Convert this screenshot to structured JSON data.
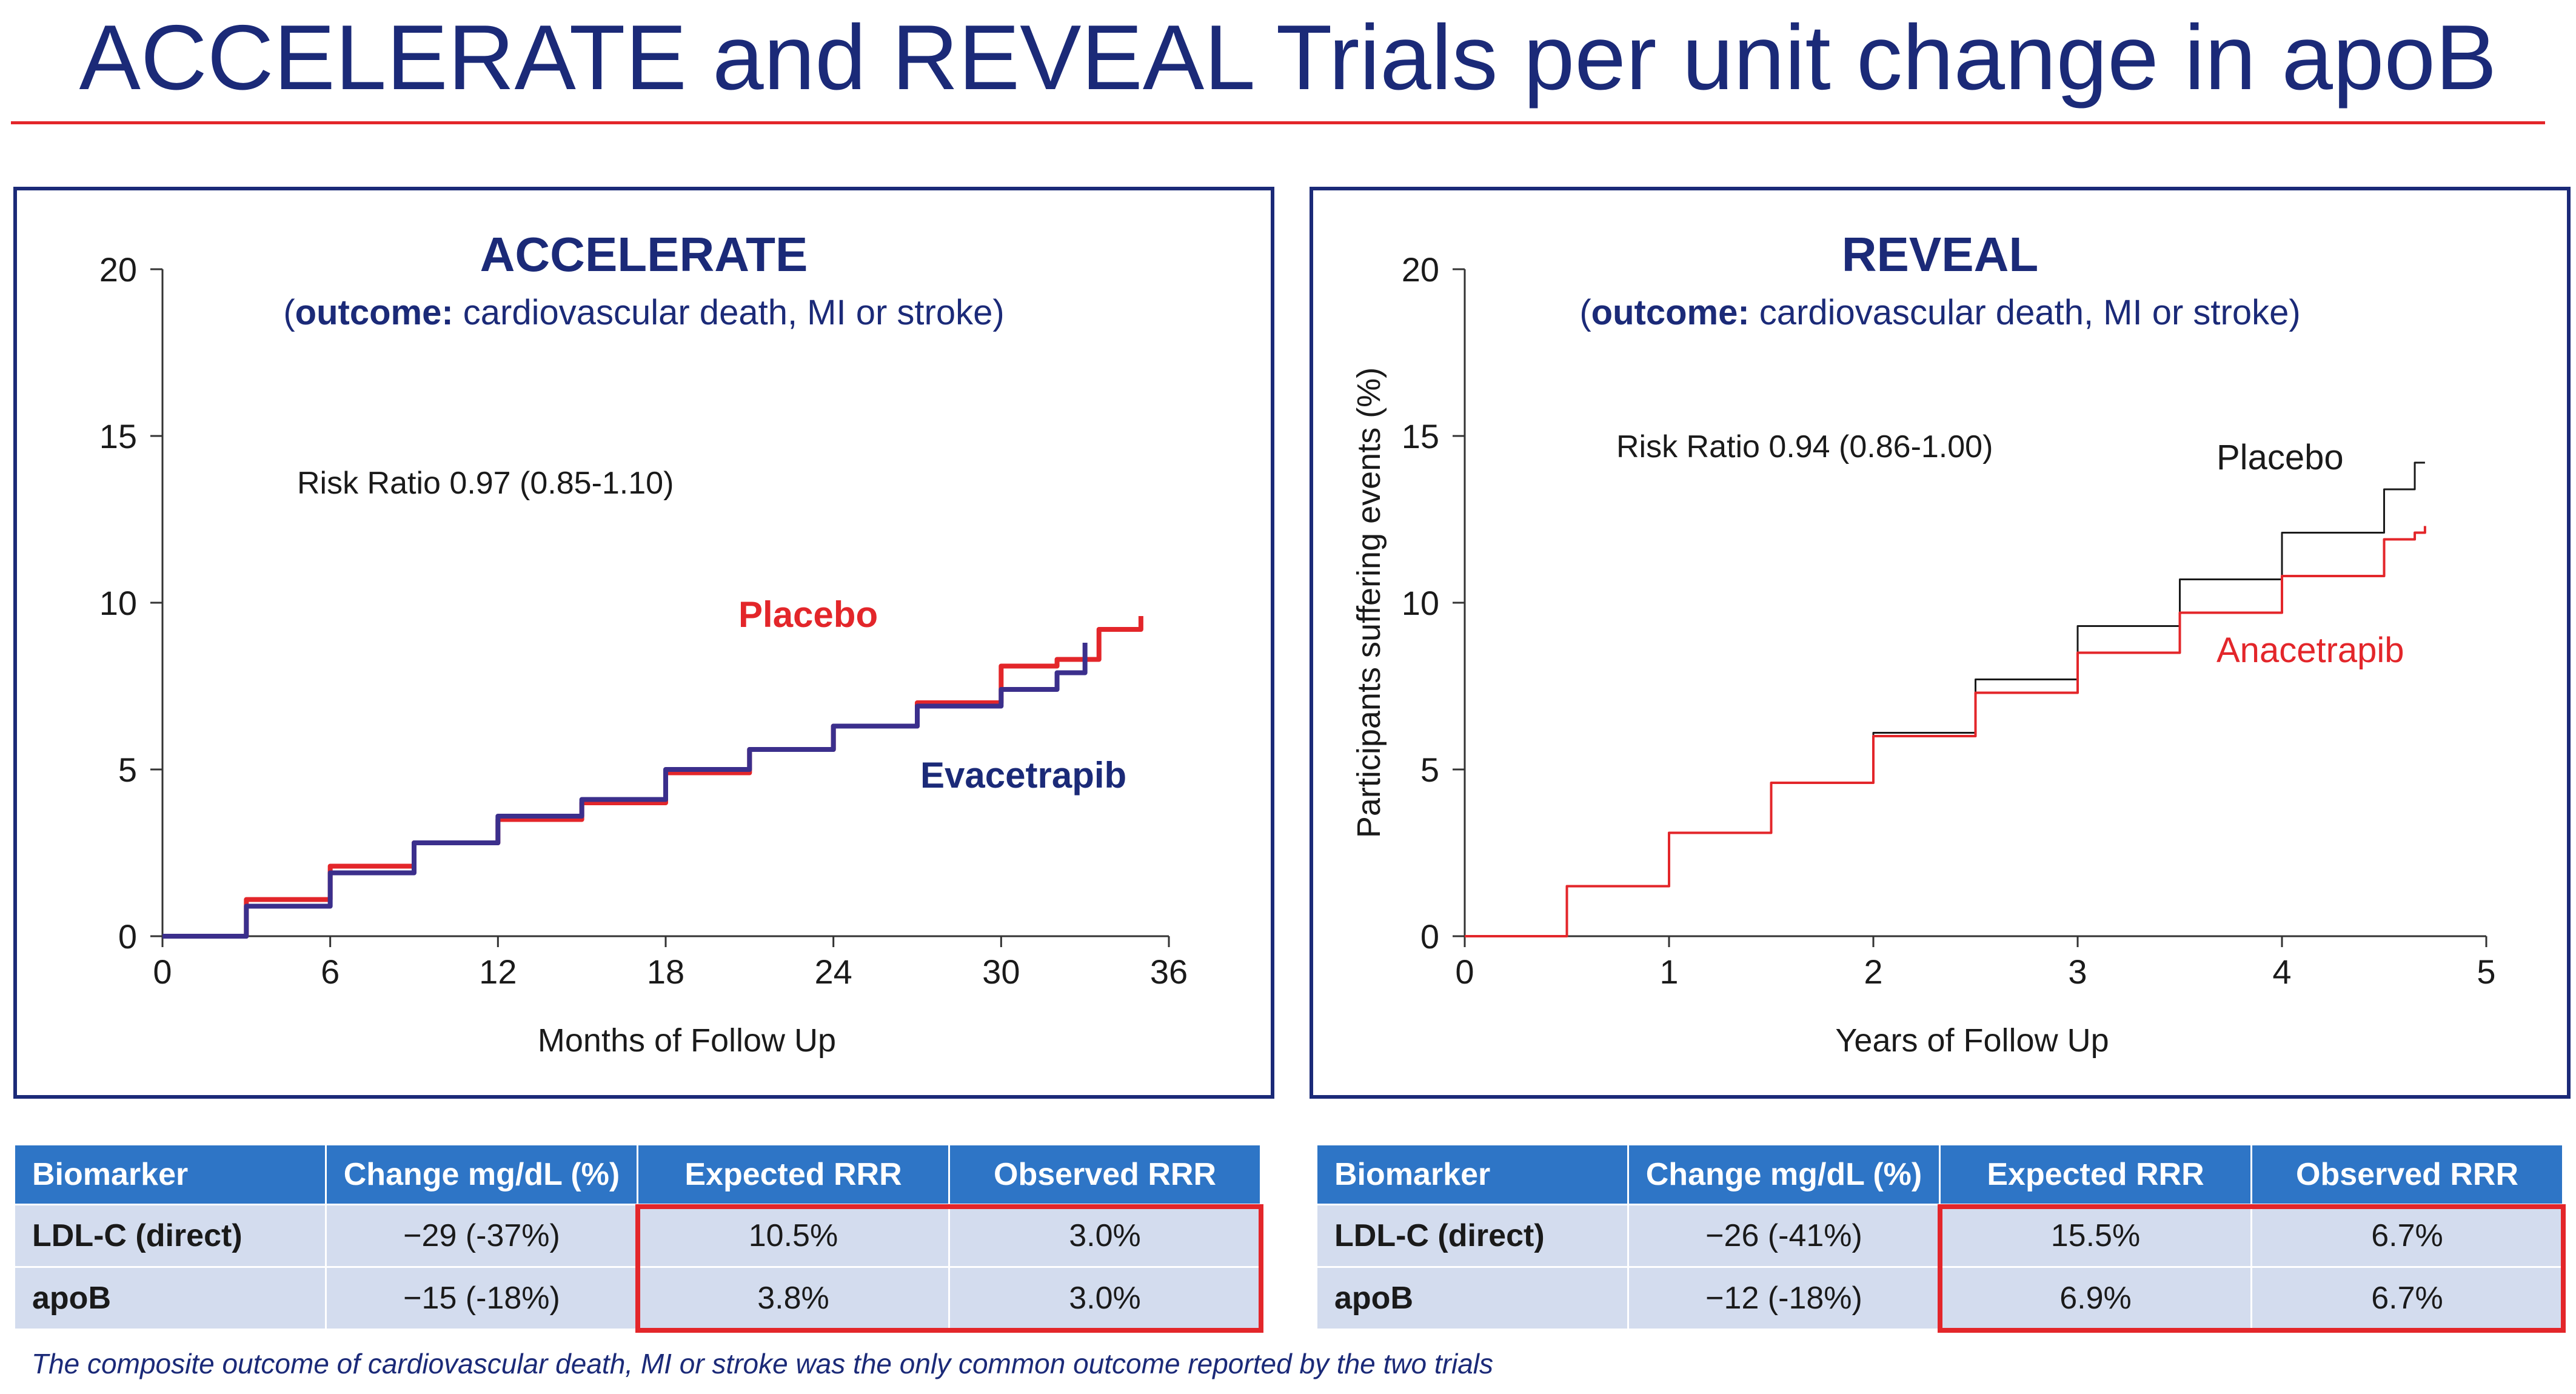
{
  "slide": {
    "title": "ACCELERATE and REVEAL Trials per unit change in apoB",
    "footnote": "The composite outcome of cardiovascular death, MI or stroke was the only common outcome reported by the two trials"
  },
  "colors": {
    "navy": "#1b2a78",
    "red": "#e3262a",
    "header_blue": "#2e75c6",
    "cell_blue": "#d3dcee",
    "evacetrapib": "#3b2f8c"
  },
  "chart_data": [
    {
      "type": "line",
      "title": "ACCELERATE",
      "subtitle_bold": "outcome:",
      "subtitle_rest": " cardiovascular death, MI or stroke",
      "xlabel": "Months of Follow Up",
      "ylabel": "",
      "xlim": [
        0,
        36
      ],
      "ylim": [
        0,
        20
      ],
      "xticks": [
        "0",
        "6",
        "12",
        "18",
        "24",
        "30",
        "36"
      ],
      "yticks": [
        "0",
        "5",
        "10",
        "15",
        "20"
      ],
      "annotation": "Risk Ratio 0.97 (0.85-1.10)",
      "series": [
        {
          "name": "Placebo",
          "color": "#e3262a",
          "x": [
            0,
            3,
            6,
            9,
            12,
            15,
            18,
            21,
            24,
            27,
            30,
            32,
            33.5,
            35,
            35
          ],
          "y": [
            0,
            1.1,
            2.1,
            2.8,
            3.5,
            4.0,
            4.9,
            5.6,
            6.3,
            7.0,
            8.1,
            8.3,
            9.2,
            9.2,
            9.6
          ]
        },
        {
          "name": "Evacetrapib",
          "color": "#3b2f8c",
          "x": [
            0,
            3,
            6,
            9,
            12,
            15,
            18,
            21,
            24,
            27,
            30,
            32,
            33
          ],
          "y": [
            0,
            0.9,
            1.9,
            2.8,
            3.6,
            4.1,
            5.0,
            5.6,
            6.3,
            6.9,
            7.4,
            7.9,
            8.8
          ]
        }
      ],
      "labels": [
        {
          "series": "Placebo",
          "text": "Placebo",
          "color": "#e3262a"
        },
        {
          "series": "Evacetrapib",
          "text": "Evacetrapib",
          "color": "#1b2a78"
        }
      ]
    },
    {
      "type": "line",
      "title": "REVEAL",
      "subtitle_bold": "outcome:",
      "subtitle_rest": " cardiovascular death, MI or stroke",
      "xlabel": "Years of Follow Up",
      "ylabel": "Participants suffering events (%)",
      "xlim": [
        0,
        5
      ],
      "ylim": [
        0,
        20
      ],
      "xticks": [
        "0",
        "1",
        "2",
        "3",
        "4",
        "5"
      ],
      "yticks": [
        "0",
        "5",
        "10",
        "15",
        "20"
      ],
      "annotation": "Risk Ratio 0.94 (0.86-1.00)",
      "series": [
        {
          "name": "Placebo",
          "color": "#1a1a1a",
          "x": [
            0,
            0.5,
            1,
            1.5,
            2,
            2.5,
            3,
            3.5,
            4,
            4.5,
            4.65,
            4.7
          ],
          "y": [
            0,
            1.5,
            3.1,
            4.6,
            6.1,
            7.7,
            9.3,
            10.7,
            12.1,
            13.4,
            14.2,
            14.2
          ]
        },
        {
          "name": "Anacetrapib",
          "color": "#e3262a",
          "x": [
            0,
            0.5,
            1,
            1.5,
            2,
            2.5,
            3,
            3.5,
            4,
            4.5,
            4.65,
            4.7
          ],
          "y": [
            0,
            1.5,
            3.1,
            4.6,
            6.0,
            7.3,
            8.5,
            9.7,
            10.8,
            11.9,
            12.1,
            12.3
          ]
        }
      ],
      "labels": [
        {
          "series": "Placebo",
          "text": "Placebo",
          "color": "#1a1a1a"
        },
        {
          "series": "Anacetrapib",
          "text": "Anacetrapib",
          "color": "#e3262a"
        }
      ]
    }
  ],
  "tables": [
    {
      "headers": [
        "Biomarker",
        "Change mg/dL (%)",
        "Expected RRR",
        "Observed RRR"
      ],
      "rows": [
        [
          "LDL-C (direct)",
          "−29 (-37%)",
          "10.5%",
          "3.0%"
        ],
        [
          "apoB",
          "−15 (-18%)",
          "3.8%",
          "3.0%"
        ]
      ]
    },
    {
      "headers": [
        "Biomarker",
        "Change mg/dL (%)",
        "Expected RRR",
        "Observed RRR"
      ],
      "rows": [
        [
          "LDL-C (direct)",
          "−26 (-41%)",
          "15.5%",
          "6.7%"
        ],
        [
          "apoB",
          "−12 (-18%)",
          "6.9%",
          "6.7%"
        ]
      ]
    }
  ]
}
